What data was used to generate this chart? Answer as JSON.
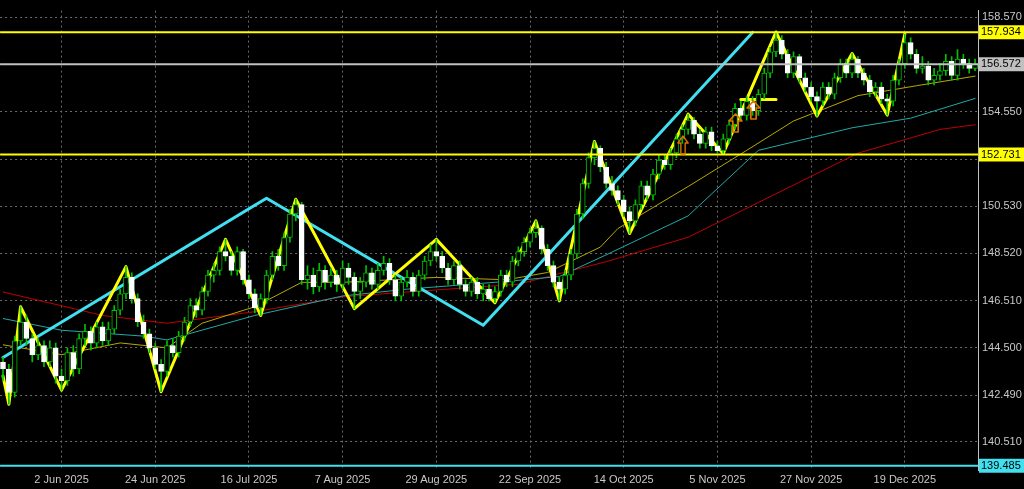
{
  "chart_data": {
    "type": "candlestick",
    "categories": [
      null,
      null,
      null,
      null,
      null,
      null,
      null,
      null,
      null,
      null,
      "2 Jun 2025",
      null,
      null,
      null,
      null,
      null,
      null,
      null,
      null,
      null,
      null,
      null,
      null,
      null,
      null,
      null,
      "24 Jun 2025",
      null,
      null,
      null,
      null,
      null,
      null,
      null,
      null,
      null,
      null,
      null,
      null,
      null,
      null,
      null,
      "16 Jul 2025",
      null,
      null,
      null,
      null,
      null,
      null,
      null,
      null,
      null,
      null,
      null,
      null,
      null,
      null,
      null,
      "7 Aug 2025",
      null,
      null,
      null,
      null,
      null,
      null,
      null,
      null,
      null,
      null,
      null,
      null,
      null,
      null,
      null,
      "29 Aug 2025",
      null,
      null,
      null,
      null,
      null,
      null,
      null,
      null,
      null,
      null,
      null,
      null,
      null,
      null,
      null,
      "22 Sep 2025",
      null,
      null,
      null,
      null,
      null,
      null,
      null,
      null,
      null,
      null,
      null,
      null,
      null,
      null,
      null,
      "14 Oct 2025",
      null,
      null,
      null,
      null,
      null,
      null,
      null,
      null,
      null,
      null,
      null,
      null,
      null,
      null,
      null,
      "5 Nov 2025",
      null,
      null,
      null,
      null,
      null,
      null,
      null,
      null,
      null,
      null,
      null,
      null,
      null,
      null,
      null,
      "27 Nov 2025",
      null,
      null,
      null,
      null,
      null,
      null,
      null,
      null,
      null,
      null,
      null,
      null,
      null,
      null,
      null,
      "19 Dec 2025",
      null,
      null,
      null,
      null,
      null,
      null,
      null,
      null,
      null,
      null,
      null,
      null
    ],
    "color": "#00c000",
    "colors": [
      "#ffffff",
      "#ffffff",
      "#00c000",
      "#00c000",
      "#ffffff",
      "#ffffff",
      "#00c000",
      "#ffffff",
      "#00c000",
      "#ffffff",
      "#ffffff",
      "#00c000",
      "#ffffff",
      "#00c000",
      "#00c000",
      "#ffffff",
      "#00c000",
      "#ffffff",
      "#00c000",
      "#00c000",
      "#00c000",
      "#00c000",
      "#ffffff",
      "#ffffff",
      "#ffffff",
      "#ffffff",
      "#ffffff",
      "#ffffff",
      "#00c000",
      "#ffffff",
      "#00c000",
      "#00c000",
      "#00c000",
      "#ffffff",
      "#00c000",
      "#00c000",
      "#00c000",
      "#00c000",
      "#ffffff",
      "#ffffff",
      "#00c000",
      "#ffffff",
      "#ffffff",
      "#ffffff",
      "#00c000",
      "#00c000",
      "#00c000",
      "#ffffff",
      "#00c000",
      "#00c000",
      "#00c000",
      "#ffffff",
      "#00c000",
      "#ffffff",
      "#00c000",
      "#ffffff",
      "#00c000",
      "#ffffff",
      "#00c000",
      "#ffffff",
      "#ffffff",
      "#00c000",
      "#00c000",
      "#ffffff",
      "#00c000",
      "#00c000",
      "#ffffff",
      "#ffffff",
      "#00c000",
      "#00c000",
      "#ffffff",
      "#00c000",
      "#00c000",
      "#00c000",
      "#ffffff",
      "#ffffff",
      "#ffffff",
      "#00c000",
      "#ffffff",
      "#ffffff",
      "#00c000",
      "#ffffff",
      "#00c000",
      "#ffffff",
      "#00c000",
      "#00c000",
      "#ffffff",
      "#00c000",
      "#00c000",
      "#00c000",
      "#00c000",
      "#00c000",
      "#ffffff",
      "#ffffff",
      "#ffffff",
      "#ffffff",
      "#00c000",
      "#00c000",
      "#00c000",
      "#00c000",
      "#00c000",
      "#00c000",
      "#ffffff",
      "#ffffff",
      "#ffffff",
      "#ffffff",
      "#ffffff",
      "#ffffff",
      "#00c000",
      "#00c000",
      "#ffffff",
      "#00c000",
      "#00c000",
      "#ffffff",
      "#00c000",
      "#00c000",
      "#00c000",
      "#00c000",
      "#ffffff",
      "#ffffff",
      "#00c000",
      "#ffffff",
      "#ffffff",
      "#00c000",
      "#00c000",
      "#00c000",
      "#ffffff",
      "#00c000",
      "#ffffff",
      "#00c000",
      "#00c000",
      "#00c000",
      "#00c000",
      "#ffffff",
      "#ffffff",
      "#00c000",
      "#ffffff",
      "#ffffff",
      "#ffffff",
      "#ffffff",
      "#00c000",
      "#ffffff",
      "#00c000",
      "#00c000",
      "#ffffff",
      "#00c000",
      "#ffffff",
      "#ffffff",
      "#ffffff",
      "#00c000",
      "#ffffff",
      "#ffffff",
      "#00c000",
      "#00c000",
      "#00c000",
      "#ffffff",
      "#ffffff",
      "#00c000",
      "#ffffff",
      "#00c000",
      "#00c000",
      "#00c000",
      "#ffffff",
      "#00c000",
      "#ffffff",
      "#ffffff",
      "#00c000"
    ],
    "ohlc": [
      [
        143.9,
        144.1,
        143.1,
        143.6
      ],
      [
        143.6,
        143.8,
        142.1,
        142.6
      ],
      [
        142.6,
        145.0,
        142.4,
        144.8
      ],
      [
        144.8,
        146.25,
        144.6,
        145.6
      ],
      [
        145.6,
        145.9,
        144.6,
        144.9
      ],
      [
        144.9,
        145.1,
        143.9,
        144.2
      ],
      [
        144.2,
        144.9,
        144.0,
        144.6
      ],
      [
        144.6,
        144.8,
        143.7,
        143.9
      ],
      [
        143.9,
        144.8,
        143.7,
        144.5
      ],
      [
        144.5,
        144.7,
        143.0,
        143.3
      ],
      [
        143.3,
        143.6,
        142.7,
        143.1
      ],
      [
        143.1,
        144.5,
        142.9,
        144.3
      ],
      [
        144.3,
        144.6,
        143.3,
        143.6
      ],
      [
        143.6,
        145.1,
        143.4,
        144.9
      ],
      [
        144.9,
        145.5,
        144.6,
        145.2
      ],
      [
        145.2,
        145.4,
        144.4,
        144.7
      ],
      [
        144.7,
        145.6,
        144.5,
        145.4
      ],
      [
        145.4,
        145.6,
        144.6,
        144.8
      ],
      [
        144.8,
        145.6,
        144.6,
        145.3
      ],
      [
        145.3,
        146.3,
        145.1,
        146.1
      ],
      [
        146.1,
        147.0,
        145.9,
        146.8
      ],
      [
        146.8,
        147.96,
        146.6,
        147.5
      ],
      [
        147.5,
        147.7,
        146.4,
        146.6
      ],
      [
        146.6,
        146.8,
        145.4,
        145.6
      ],
      [
        145.6,
        145.9,
        144.9,
        145.1
      ],
      [
        145.1,
        145.3,
        144.3,
        144.5
      ],
      [
        144.5,
        144.7,
        143.6,
        143.8
      ],
      [
        143.8,
        144.0,
        142.63,
        143.5
      ],
      [
        143.5,
        144.8,
        143.3,
        144.6
      ],
      [
        144.6,
        144.9,
        144.1,
        144.3
      ],
      [
        144.3,
        145.2,
        144.1,
        145.0
      ],
      [
        145.0,
        145.8,
        144.8,
        145.6
      ],
      [
        145.6,
        146.6,
        145.4,
        146.3
      ],
      [
        146.3,
        146.6,
        145.8,
        146.1
      ],
      [
        146.1,
        147.1,
        145.9,
        146.9
      ],
      [
        146.9,
        147.8,
        146.7,
        147.6
      ],
      [
        147.6,
        148.1,
        147.3,
        147.8
      ],
      [
        147.8,
        148.8,
        147.6,
        148.6
      ],
      [
        148.6,
        149.12,
        148.2,
        148.4
      ],
      [
        148.4,
        148.6,
        147.6,
        147.8
      ],
      [
        147.8,
        148.8,
        147.6,
        148.6
      ],
      [
        148.6,
        148.7,
        147.2,
        147.4
      ],
      [
        147.4,
        147.6,
        146.6,
        146.8
      ],
      [
        146.8,
        147.0,
        146.0,
        146.2
      ],
      [
        146.2,
        146.8,
        145.88,
        146.6
      ],
      [
        146.6,
        147.8,
        146.4,
        147.6
      ],
      [
        147.6,
        148.6,
        147.4,
        148.4
      ],
      [
        148.4,
        148.7,
        147.8,
        148.0
      ],
      [
        148.0,
        149.4,
        147.8,
        149.2
      ],
      [
        149.2,
        150.4,
        149.0,
        150.2
      ],
      [
        150.2,
        150.83,
        149.9,
        150.6
      ],
      [
        150.6,
        150.7,
        147.2,
        147.4
      ],
      [
        147.4,
        148.0,
        147.0,
        147.6
      ],
      [
        147.6,
        147.9,
        146.8,
        147.1
      ],
      [
        147.1,
        148.1,
        146.9,
        147.8
      ],
      [
        147.8,
        148.0,
        147.0,
        147.3
      ],
      [
        147.3,
        147.9,
        147.1,
        147.6
      ],
      [
        147.6,
        147.8,
        146.9,
        147.2
      ],
      [
        147.2,
        148.2,
        147.0,
        147.9
      ],
      [
        147.9,
        148.1,
        147.2,
        147.5
      ],
      [
        147.5,
        147.7,
        146.17,
        146.9
      ],
      [
        146.9,
        147.5,
        146.6,
        147.3
      ],
      [
        147.3,
        148.0,
        147.1,
        147.7
      ],
      [
        147.7,
        147.9,
        147.0,
        147.2
      ],
      [
        147.2,
        148.1,
        147.0,
        147.8
      ],
      [
        147.8,
        148.4,
        147.6,
        148.1
      ],
      [
        148.1,
        148.3,
        147.2,
        147.4
      ],
      [
        147.4,
        147.6,
        146.5,
        146.7
      ],
      [
        146.7,
        147.5,
        146.5,
        147.3
      ],
      [
        147.3,
        147.8,
        147.1,
        147.5
      ],
      [
        147.5,
        147.7,
        146.7,
        146.9
      ],
      [
        146.9,
        147.8,
        146.7,
        147.6
      ],
      [
        147.6,
        148.4,
        147.4,
        148.2
      ],
      [
        148.2,
        148.9,
        148.0,
        148.6
      ],
      [
        148.6,
        149.12,
        148.2,
        148.4
      ],
      [
        148.4,
        148.6,
        147.7,
        147.9
      ],
      [
        147.9,
        148.1,
        147.2,
        147.4
      ],
      [
        147.4,
        148.2,
        147.2,
        148.0
      ],
      [
        148.0,
        148.2,
        147.0,
        147.2
      ],
      [
        147.2,
        147.4,
        146.7,
        146.9
      ],
      [
        146.9,
        147.5,
        146.7,
        147.3
      ],
      [
        147.3,
        147.5,
        146.6,
        146.8
      ],
      [
        146.8,
        147.2,
        146.5,
        147.0
      ],
      [
        147.0,
        147.2,
        146.5,
        146.6
      ],
      [
        146.6,
        147.1,
        146.42,
        146.9
      ],
      [
        146.9,
        147.8,
        146.7,
        147.6
      ],
      [
        147.6,
        147.8,
        147.1,
        147.3
      ],
      [
        147.3,
        148.4,
        147.1,
        148.2
      ],
      [
        148.2,
        148.8,
        148.0,
        148.6
      ],
      [
        148.6,
        149.2,
        148.4,
        149.0
      ],
      [
        149.0,
        149.6,
        148.8,
        149.4
      ],
      [
        149.4,
        149.91,
        149.2,
        149.6
      ],
      [
        149.6,
        149.7,
        148.5,
        148.7
      ],
      [
        148.7,
        148.9,
        147.8,
        148.0
      ],
      [
        148.0,
        148.2,
        147.1,
        147.3
      ],
      [
        147.3,
        147.5,
        146.5,
        147.0
      ],
      [
        147.0,
        147.8,
        146.8,
        147.6
      ],
      [
        147.6,
        148.7,
        147.4,
        148.5
      ],
      [
        148.5,
        150.4,
        148.3,
        150.2
      ],
      [
        150.2,
        151.7,
        150.0,
        151.5
      ],
      [
        151.5,
        152.8,
        151.3,
        152.6
      ],
      [
        152.6,
        153.29,
        152.3,
        153.0
      ],
      [
        153.0,
        153.1,
        152.0,
        152.2
      ],
      [
        152.2,
        152.4,
        151.3,
        151.5
      ],
      [
        151.5,
        151.8,
        151.0,
        151.2
      ],
      [
        151.2,
        151.4,
        150.6,
        150.8
      ],
      [
        150.8,
        151.0,
        150.1,
        150.3
      ],
      [
        150.3,
        150.5,
        149.37,
        149.9
      ],
      [
        149.9,
        150.8,
        149.7,
        150.6
      ],
      [
        150.6,
        151.6,
        150.4,
        151.4
      ],
      [
        151.4,
        151.6,
        150.8,
        151.0
      ],
      [
        151.0,
        152.1,
        150.8,
        151.9
      ],
      [
        151.9,
        152.7,
        151.7,
        152.5
      ],
      [
        152.5,
        152.7,
        152.1,
        152.3
      ],
      [
        152.3,
        153.0,
        152.1,
        152.8
      ],
      [
        152.8,
        153.6,
        152.6,
        153.4
      ],
      [
        153.4,
        154.0,
        153.2,
        153.8
      ],
      [
        153.8,
        154.45,
        153.6,
        154.2
      ],
      [
        154.2,
        154.3,
        153.4,
        153.6
      ],
      [
        153.6,
        153.8,
        153.0,
        153.2
      ],
      [
        153.2,
        153.9,
        153.0,
        153.7
      ],
      [
        153.7,
        153.9,
        152.9,
        153.1
      ],
      [
        153.1,
        153.3,
        152.8,
        152.9
      ],
      [
        152.9,
        153.6,
        152.78,
        153.4
      ],
      [
        153.4,
        154.2,
        153.2,
        154.0
      ],
      [
        154.0,
        154.9,
        153.8,
        154.7
      ],
      [
        154.7,
        155.0,
        154.2,
        154.4
      ],
      [
        154.4,
        155.2,
        154.2,
        155.0
      ],
      [
        155.0,
        155.2,
        154.4,
        154.6
      ],
      [
        154.6,
        155.5,
        154.4,
        155.3
      ],
      [
        155.3,
        156.4,
        155.1,
        156.2
      ],
      [
        156.2,
        157.3,
        156.0,
        157.1
      ],
      [
        157.1,
        157.95,
        156.9,
        157.6
      ],
      [
        157.6,
        157.8,
        156.8,
        157.0
      ],
      [
        157.0,
        157.2,
        156.0,
        156.2
      ],
      [
        156.2,
        157.1,
        156.0,
        156.9
      ],
      [
        156.9,
        157.0,
        155.8,
        156.0
      ],
      [
        156.0,
        156.2,
        155.4,
        155.6
      ],
      [
        155.6,
        155.8,
        155.0,
        155.2
      ],
      [
        155.2,
        155.4,
        154.37,
        155.0
      ],
      [
        155.0,
        155.8,
        154.8,
        155.6
      ],
      [
        155.6,
        155.8,
        155.1,
        155.3
      ],
      [
        155.3,
        156.2,
        155.1,
        156.0
      ],
      [
        156.0,
        156.8,
        155.8,
        156.6
      ],
      [
        156.6,
        156.8,
        156.0,
        156.2
      ],
      [
        156.2,
        157.03,
        156.0,
        156.8
      ],
      [
        156.8,
        156.9,
        156.0,
        156.2
      ],
      [
        156.2,
        156.4,
        155.7,
        155.9
      ],
      [
        155.9,
        156.1,
        155.2,
        155.4
      ],
      [
        155.4,
        155.8,
        155.2,
        155.6
      ],
      [
        155.6,
        155.8,
        154.9,
        155.1
      ],
      [
        155.1,
        155.3,
        154.41,
        155.0
      ],
      [
        155.0,
        156.1,
        154.8,
        155.9
      ],
      [
        155.9,
        156.8,
        155.7,
        156.6
      ],
      [
        156.6,
        157.86,
        156.4,
        157.5
      ],
      [
        157.5,
        157.7,
        156.8,
        157.0
      ],
      [
        157.0,
        157.2,
        156.2,
        156.4
      ],
      [
        156.4,
        156.9,
        156.2,
        156.5
      ],
      [
        156.5,
        156.7,
        155.7,
        155.9
      ],
      [
        155.9,
        156.4,
        155.7,
        156.1
      ],
      [
        156.1,
        156.6,
        155.9,
        156.3
      ],
      [
        156.3,
        157.0,
        156.1,
        156.7
      ],
      [
        156.7,
        156.9,
        155.9,
        156.1
      ],
      [
        156.1,
        157.2,
        155.9,
        156.8
      ],
      [
        156.8,
        157.0,
        156.4,
        156.6
      ],
      [
        156.6,
        156.8,
        156.2,
        156.4
      ],
      [
        156.4,
        156.8,
        156.3,
        156.572
      ]
    ],
    "series": [
      {
        "type": "line",
        "color": "#ffff00",
        "values": [
          143.3,
          142.1,
          null,
          146.25,
          null,
          null,
          null,
          null,
          null,
          null,
          142.7,
          null,
          null,
          null,
          null,
          null,
          null,
          null,
          null,
          null,
          null,
          147.96,
          null,
          null,
          null,
          null,
          null,
          142.63,
          null,
          null,
          null,
          null,
          null,
          null,
          null,
          null,
          null,
          null,
          149.12,
          null,
          null,
          null,
          null,
          null,
          145.88,
          null,
          null,
          null,
          null,
          null,
          150.83,
          null,
          null,
          null,
          null,
          null,
          null,
          null,
          null,
          null,
          146.17,
          null,
          null,
          null,
          null,
          null,
          null,
          null,
          null,
          null,
          null,
          null,
          null,
          null,
          149.12,
          null,
          null,
          null,
          null,
          null,
          null,
          null,
          null,
          null,
          146.42,
          null,
          null,
          null,
          null,
          null,
          null,
          149.91,
          null,
          null,
          null,
          146.5,
          null,
          null,
          null,
          null,
          null,
          153.29,
          null,
          null,
          null,
          null,
          null,
          149.37,
          null,
          null,
          null,
          null,
          null,
          null,
          null,
          null,
          null,
          154.45,
          null,
          null,
          null,
          null,
          null,
          152.78,
          null,
          null,
          null,
          null,
          null,
          null,
          null,
          null,
          157.95,
          null,
          null,
          null,
          null,
          null,
          null,
          154.37,
          null,
          null,
          null,
          null,
          null,
          157.03,
          null,
          null,
          null,
          null,
          null,
          154.41,
          null,
          null,
          157.86,
          null,
          null,
          null,
          null,
          null,
          null,
          null,
          null,
          null,
          null,
          null,
          null
        ]
      },
      {
        "type": "line",
        "color": "#40e0f0",
        "values": [
          144.09,
          null,
          null,
          null,
          null,
          null,
          null,
          null,
          null,
          null,
          null,
          null,
          null,
          null,
          null,
          null,
          null,
          null,
          null,
          null,
          null,
          null,
          null,
          null,
          null,
          null,
          null,
          null,
          null,
          null,
          null,
          null,
          null,
          null,
          null,
          null,
          null,
          null,
          null,
          null,
          null,
          null,
          null,
          null,
          null,
          150.87,
          null,
          null,
          null,
          null,
          null,
          null,
          null,
          null,
          null,
          null,
          null,
          null,
          null,
          null,
          null,
          null,
          null,
          null,
          null,
          null,
          null,
          null,
          null,
          null,
          null,
          null,
          null,
          null,
          null,
          null,
          null,
          null,
          null,
          null,
          null,
          null,
          145.46,
          null,
          null,
          null,
          null,
          null,
          null,
          null,
          null,
          null,
          null,
          null,
          null,
          null,
          null,
          null,
          null,
          null,
          null,
          null,
          null,
          null,
          null,
          null,
          null,
          null,
          null,
          null,
          null,
          null,
          null,
          null,
          null,
          null,
          null,
          null,
          null,
          null,
          null,
          null,
          null,
          null,
          null,
          null,
          null,
          null,
          157.93,
          null,
          null,
          null,
          null,
          null,
          null,
          null,
          null,
          null,
          null,
          null,
          null,
          null,
          null,
          null,
          null,
          null,
          null,
          null,
          null,
          null,
          null,
          null,
          null,
          null,
          null,
          null,
          null,
          null,
          null,
          null,
          null,
          null,
          null,
          null,
          null,
          null,
          null
        ]
      },
      {
        "type": "line",
        "color": "#ffff00",
        "values": [
          null,
          null,
          null,
          null,
          null,
          null,
          null,
          null,
          null,
          null,
          null,
          null,
          null,
          null,
          null,
          null,
          null,
          null,
          null,
          null,
          null,
          null,
          null,
          null,
          null,
          null,
          null,
          null,
          null,
          null,
          null,
          null,
          null,
          null,
          null,
          null,
          null,
          null,
          null,
          null,
          null,
          null,
          null,
          null,
          null,
          null,
          null,
          null,
          null,
          null,
          null,
          null,
          null,
          null,
          null,
          null,
          null,
          null,
          null,
          null,
          null,
          null,
          null,
          null,
          null,
          null,
          null,
          null,
          null,
          null,
          null,
          null,
          null,
          null,
          null,
          null,
          null,
          null,
          null,
          null,
          null,
          null,
          null,
          null,
          null,
          null,
          null,
          null,
          null,
          null,
          null,
          null,
          null,
          null,
          null,
          null,
          null,
          null,
          null,
          null,
          null,
          null,
          null,
          null,
          null,
          null,
          null,
          null,
          null,
          null,
          null,
          null,
          null,
          null,
          null,
          null,
          null,
          null,
          null,
          null,
          null,
          null,
          null,
          null,
          null,
          null,
          155.07,
          null,
          null,
          null,
          null,
          null,
          155.07,
          null,
          null,
          null,
          null,
          null,
          null,
          null,
          null,
          null,
          null,
          null,
          null,
          null,
          null,
          null,
          null,
          null,
          null,
          null,
          null,
          null,
          null,
          null,
          null,
          null,
          null,
          null,
          null,
          null,
          null,
          null,
          null,
          null,
          null
        ]
      },
      {
        "type": "line",
        "color": "#b8a800",
        "values": [
          144.63,
          null,
          null,
          null,
          null,
          null,
          null,
          null,
          null,
          null,
          144.21,
          null,
          null,
          null,
          null,
          null,
          null,
          null,
          null,
          null,
          144.71,
          null,
          null,
          null,
          null,
          null,
          null,
          null,
          144.5,
          null,
          null,
          null,
          null,
          null,
          145.55,
          null,
          null,
          null,
          null,
          null,
          null,
          null,
          null,
          146.25,
          null,
          null,
          null,
          null,
          null,
          null,
          null,
          147.29,
          null,
          null,
          null,
          null,
          null,
          null,
          147.29,
          null,
          null,
          null,
          null,
          null,
          null,
          null,
          null,
          null,
          null,
          null,
          null,
          null,
          null,
          null,
          147.5,
          null,
          null,
          null,
          null,
          null,
          null,
          null,
          null,
          null,
          null,
          null,
          147.4,
          null,
          null,
          null,
          null,
          null,
          null,
          147.71,
          null,
          null,
          null,
          null,
          null,
          null,
          null,
          null,
          148.79,
          null,
          null,
          149.58,
          null,
          null,
          null,
          null,
          null,
          null,
          null,
          null,
          null,
          null,
          null,
          151.37,
          null,
          null,
          null,
          null,
          null,
          null,
          null,
          null,
          null,
          152.91,
          null,
          null,
          null,
          null,
          null,
          null,
          null,
          154.16,
          null,
          null,
          null,
          null,
          null,
          null,
          null,
          null,
          null,
          null,
          155.24,
          null,
          null,
          null,
          null,
          null,
          null,
          null,
          null,
          null,
          155.66,
          null,
          null,
          null,
          null,
          null,
          null,
          null,
          null,
          null,
          156.07
        ]
      },
      {
        "type": "line",
        "color": "#20a8a8",
        "values": [
          145.75,
          null,
          null,
          null,
          null,
          null,
          null,
          null,
          null,
          null,
          145.25,
          null,
          null,
          null,
          null,
          null,
          null,
          null,
          null,
          null,
          null,
          null,
          null,
          null,
          145.0,
          null,
          null,
          null,
          144.84,
          null,
          null,
          null,
          null,
          null,
          null,
          null,
          null,
          null,
          null,
          null,
          null,
          null,
          null,
          145.88,
          null,
          null,
          null,
          null,
          null,
          null,
          null,
          null,
          null,
          null,
          null,
          null,
          null,
          null,
          146.71,
          null,
          null,
          null,
          null,
          null,
          null,
          null,
          null,
          null,
          null,
          147.0,
          null,
          null,
          null,
          null,
          null,
          null,
          null,
          null,
          null,
          null,
          null,
          null,
          null,
          null,
          null,
          null,
          147.33,
          null,
          null,
          null,
          null,
          null,
          null,
          null,
          null,
          147.54,
          null,
          null,
          null,
          null,
          null,
          null,
          null,
          148.46,
          null,
          null,
          null,
          null,
          null,
          null,
          null,
          null,
          null,
          null,
          null,
          null,
          null,
          150.12,
          null,
          null,
          null,
          null,
          null,
          null,
          null,
          null,
          null,
          null,
          null,
          152.91,
          null,
          null,
          null,
          null,
          null,
          null,
          null,
          null,
          null,
          null,
          null,
          null,
          null,
          null,
          null,
          153.87,
          null,
          null,
          null,
          null,
          null,
          null,
          null,
          null,
          null,
          154.28,
          null,
          null,
          null,
          null,
          null,
          null,
          null,
          null,
          null,
          null,
          155.12
        ]
      },
      {
        "type": "line",
        "color": "#c00000",
        "values": [
          146.88,
          null,
          null,
          null,
          null,
          null,
          null,
          null,
          null,
          null,
          null,
          null,
          null,
          null,
          null,
          null,
          null,
          145.88,
          null,
          null,
          null,
          null,
          null,
          null,
          null,
          null,
          null,
          null,
          145.55,
          null,
          null,
          null,
          null,
          null,
          null,
          null,
          null,
          null,
          null,
          null,
          null,
          null,
          null,
          146.04,
          null,
          null,
          null,
          null,
          null,
          null,
          null,
          null,
          null,
          null,
          null,
          null,
          null,
          null,
          146.67,
          null,
          null,
          null,
          null,
          null,
          null,
          null,
          null,
          null,
          null,
          146.88,
          null,
          null,
          null,
          null,
          null,
          null,
          null,
          null,
          null,
          null,
          null,
          null,
          null,
          null,
          null,
          null,
          null,
          null,
          147.21,
          null,
          null,
          null,
          null,
          null,
          null,
          null,
          null,
          null,
          null,
          null,
          null,
          null,
          null,
          148.17,
          null,
          null,
          null,
          null,
          null,
          null,
          null,
          null,
          null,
          null,
          null,
          null,
          null,
          149.21,
          null,
          null,
          null,
          null,
          null,
          null,
          null,
          null,
          null,
          null,
          null,
          null,
          null,
          null,
          null,
          null,
          null,
          null,
          null,
          null,
          null,
          null,
          null,
          null,
          null,
          null,
          null,
          null,
          152.79,
          null,
          null,
          null,
          null,
          null,
          null,
          null,
          null,
          null,
          null,
          null,
          null,
          null,
          153.8,
          null,
          null,
          null,
          null,
          null,
          154.0
        ]
      }
    ],
    "ylim": [
      139.3,
      158.86
    ],
    "yticks": [
      {
        "value": 140.51,
        "label": "140.510"
      },
      {
        "value": 142.49,
        "label": "142.490"
      },
      {
        "value": 144.5,
        "label": "144.500"
      },
      {
        "value": 146.51,
        "label": "146.510"
      },
      {
        "value": 148.52,
        "label": "148.520"
      },
      {
        "value": 150.53,
        "label": "150.530"
      },
      {
        "value": 152.54,
        "label": null
      },
      {
        "value": 154.55,
        "label": "154.550"
      },
      {
        "value": 156.56,
        "label": null
      },
      {
        "value": 158.57,
        "label": "158.570"
      }
    ],
    "ref_lines": [
      {
        "axis": "y",
        "value": 157.934,
        "label": "157.934",
        "color": "#ffff00"
      },
      {
        "axis": "y",
        "value": 156.572,
        "label": "156.572",
        "color": "#c0c0c0"
      },
      {
        "axis": "y",
        "value": 152.731,
        "label": "152.731",
        "color": "#ffff00"
      },
      {
        "axis": "y",
        "value": 139.485,
        "label": "139.485",
        "color": "#40e0f0"
      }
    ],
    "grid": true
  }
}
